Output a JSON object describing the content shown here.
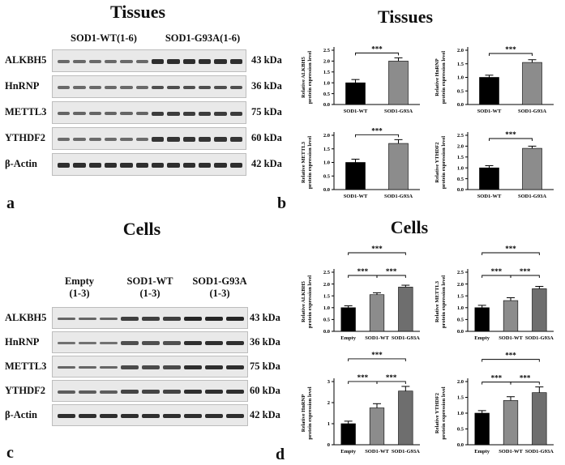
{
  "panels": {
    "a": {
      "letter": "a",
      "title": "Tissues",
      "groups": [
        "SOD1-WT(1-6)",
        "SOD1-G93A(1-6)"
      ],
      "lanes_per_group": 6,
      "blots": [
        {
          "protein": "ALKBH5",
          "kda": "43 kDa",
          "wt": 0.42,
          "mut": 0.85
        },
        {
          "protein": "HnRNP",
          "kda": "36 kDa",
          "wt": 0.42,
          "mut": 0.62
        },
        {
          "protein": "METTL3",
          "kda": "75 kDa",
          "wt": 0.45,
          "mut": 0.75
        },
        {
          "protein": "YTHDF2",
          "kda": "60 kDa",
          "wt": 0.4,
          "mut": 0.8
        },
        {
          "protein": "β-Actin",
          "kda": "42 kDa",
          "wt": 0.85,
          "mut": 0.85
        }
      ]
    },
    "b": {
      "letter": "b",
      "title": "Tissues"
    },
    "c": {
      "letter": "c",
      "title": "Cells",
      "groups": [
        {
          "line1": "Empty",
          "line2": "(1-3)"
        },
        {
          "line1": "SOD1-WT",
          "line2": "(1-3)"
        },
        {
          "line1": "SOD1-G93A",
          "line2": "(1-3)"
        }
      ],
      "lanes_per_group": 3,
      "blots": [
        {
          "protein": "ALKBH5",
          "kda": "43 kDa",
          "levels": [
            0.45,
            0.72,
            0.9
          ]
        },
        {
          "protein": "HnRNP",
          "kda": "36 kDa",
          "levels": [
            0.35,
            0.6,
            0.85
          ]
        },
        {
          "protein": "METTL3",
          "kda": "75 kDa",
          "levels": [
            0.45,
            0.65,
            0.85
          ]
        },
        {
          "protein": "YTHDF2",
          "kda": "60 kDa",
          "levels": [
            0.5,
            0.7,
            0.85
          ]
        },
        {
          "protein": "β-Actin",
          "kda": "42 kDa",
          "levels": [
            0.85,
            0.85,
            0.85
          ]
        }
      ]
    },
    "d": {
      "letter": "d",
      "title": "Cells"
    }
  },
  "significance": "***",
  "colors": {
    "first": "#000000",
    "second": "#8c8c8c",
    "third": "#6e6e6e",
    "band": "#1a1a1a"
  },
  "chart_data": [
    {
      "id": "b1",
      "type": "bar",
      "categories": [
        "SOD1-WT",
        "SOD1-G93A"
      ],
      "values": [
        1.0,
        2.0
      ],
      "errors": [
        0.15,
        0.15
      ],
      "ylabel": "Relative ALKBH5 protein expression level",
      "ylim": [
        0,
        2.5
      ],
      "ticks": [
        0.0,
        0.5,
        1.0,
        1.5,
        2.0,
        2.5
      ],
      "tick_labels": [
        "0.0",
        "0.5",
        "1.0",
        "1.5",
        "2.0",
        "2.5"
      ],
      "comparisons": [
        [
          0,
          1
        ]
      ]
    },
    {
      "id": "b2",
      "type": "bar",
      "categories": [
        "SOD1-WT",
        "SOD1-G93A"
      ],
      "values": [
        1.0,
        1.55
      ],
      "errors": [
        0.08,
        0.1
      ],
      "ylabel": "Relative HnRNP protein expression level",
      "ylim": [
        0,
        2.0
      ],
      "ticks": [
        0.0,
        0.5,
        1.0,
        1.5,
        2.0
      ],
      "tick_labels": [
        "0.0",
        "0.5",
        "1.0",
        "1.5",
        "2.0"
      ],
      "comparisons": [
        [
          0,
          1
        ]
      ]
    },
    {
      "id": "b3",
      "type": "bar",
      "categories": [
        "SOD1-WT",
        "SOD1-G93A"
      ],
      "values": [
        1.0,
        1.7
      ],
      "errors": [
        0.12,
        0.14
      ],
      "ylabel": "Relative METTL3 protein expression level",
      "ylim": [
        0,
        2.0
      ],
      "ticks": [
        0.0,
        0.5,
        1.0,
        1.5,
        2.0
      ],
      "tick_labels": [
        "0.0",
        "0.5",
        "1.0",
        "1.5",
        "2.0"
      ],
      "comparisons": [
        [
          0,
          1
        ]
      ]
    },
    {
      "id": "b4",
      "type": "bar",
      "categories": [
        "SOD1-WT",
        "SOD1-G93A"
      ],
      "values": [
        1.0,
        1.9
      ],
      "errors": [
        0.1,
        0.1
      ],
      "ylabel": "Relative YTHDF2 protein expression level",
      "ylim": [
        0,
        2.5
      ],
      "ticks": [
        0.0,
        0.5,
        1.0,
        1.5,
        2.0,
        2.5
      ],
      "tick_labels": [
        "0.0",
        "0.5",
        "1.0",
        "1.5",
        "2.0",
        "2.5"
      ],
      "comparisons": [
        [
          0,
          1
        ]
      ]
    },
    {
      "id": "d1",
      "type": "bar",
      "categories": [
        "Empty",
        "SOD1-WT",
        "SOD1-G93A"
      ],
      "values": [
        1.0,
        1.55,
        1.87
      ],
      "errors": [
        0.08,
        0.08,
        0.08
      ],
      "ylabel": "Relative ALKBH5 protein expression level",
      "ylim": [
        0,
        2.5
      ],
      "ticks": [
        0.0,
        0.5,
        1.0,
        1.5,
        2.0,
        2.5
      ],
      "tick_labels": [
        "0.0",
        "0.5",
        "1.0",
        "1.5",
        "2.0",
        "2.5"
      ],
      "comparisons": [
        [
          0,
          1
        ],
        [
          1,
          2
        ],
        [
          0,
          2
        ]
      ]
    },
    {
      "id": "d2",
      "type": "bar",
      "categories": [
        "Empty",
        "SOD1-WT",
        "SOD1-G93A"
      ],
      "values": [
        1.0,
        1.3,
        1.8
      ],
      "errors": [
        0.1,
        0.12,
        0.1
      ],
      "ylabel": "Relative METTL3 protein expression level",
      "ylim": [
        0,
        2.5
      ],
      "ticks": [
        0.0,
        0.5,
        1.0,
        1.5,
        2.0,
        2.5
      ],
      "tick_labels": [
        "0.0",
        "0.5",
        "1.0",
        "1.5",
        "2.0",
        "2.5"
      ],
      "comparisons": [
        [
          0,
          1
        ],
        [
          1,
          2
        ],
        [
          0,
          2
        ]
      ]
    },
    {
      "id": "d3",
      "type": "bar",
      "categories": [
        "Empty",
        "SOD1-WT",
        "SOD1-G93A"
      ],
      "values": [
        1.0,
        1.75,
        2.55
      ],
      "errors": [
        0.12,
        0.2,
        0.22
      ],
      "ylabel": "Relative HnRNP protein expression level",
      "ylim": [
        0,
        3
      ],
      "ticks": [
        0,
        1,
        2,
        3
      ],
      "tick_labels": [
        "0",
        "1",
        "2",
        "3"
      ],
      "comparisons": [
        [
          0,
          1
        ],
        [
          1,
          2
        ],
        [
          0,
          2
        ]
      ]
    },
    {
      "id": "d4",
      "type": "bar",
      "categories": [
        "Empty",
        "SOD1-WT",
        "SOD1-G93A"
      ],
      "values": [
        1.0,
        1.4,
        1.65
      ],
      "errors": [
        0.08,
        0.12,
        0.18
      ],
      "ylabel": "Relative YTHDF2 protein expression level",
      "ylim": [
        0,
        2.0
      ],
      "ticks": [
        0.0,
        0.5,
        1.0,
        1.5,
        2.0
      ],
      "tick_labels": [
        "0.0",
        "0.5",
        "1.0",
        "1.5",
        "2.0"
      ],
      "comparisons": [
        [
          0,
          1
        ],
        [
          1,
          2
        ],
        [
          0,
          2
        ]
      ]
    }
  ]
}
